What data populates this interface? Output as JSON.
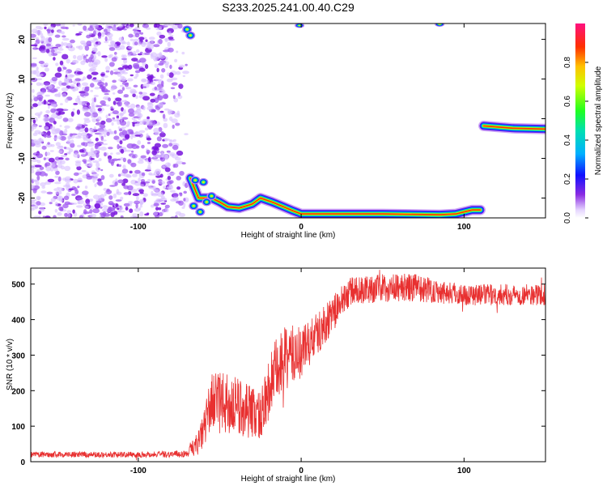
{
  "title": "S233.2025.241.00.40.C29",
  "chart_data": [
    {
      "type": "heatmap",
      "xlabel": "Height of straight line (km)",
      "ylabel": "Frequency (Hz)",
      "xlim": [
        -166,
        150
      ],
      "ylim": [
        -25,
        24
      ],
      "x_ticks": [
        -100,
        0,
        100
      ],
      "y_ticks": [
        -20,
        -10,
        0,
        10,
        20
      ],
      "colorbar": {
        "label": "Normalized spectral amplitude",
        "range": [
          0,
          1
        ],
        "ticks": [
          "0.0",
          "0.2",
          "0.4",
          "0.6",
          "0.8"
        ]
      },
      "features": [
        {
          "name": "noise",
          "x_range": [
            -166,
            -70
          ],
          "y_range": [
            -25,
            24
          ],
          "level": 0.15
        },
        {
          "name": "lower-trace",
          "points": [
            [
              -68,
              -15
            ],
            [
              -63,
              -20
            ],
            [
              -55,
              -20
            ],
            [
              -50,
              -21
            ],
            [
              -45,
              -22.2
            ],
            [
              -38,
              -22.5
            ],
            [
              -30,
              -21.5
            ],
            [
              -25,
              -20
            ],
            [
              -18,
              -21
            ],
            [
              -12,
              -22
            ],
            [
              -5,
              -23.2
            ],
            [
              0,
              -24
            ],
            [
              20,
              -24
            ],
            [
              50,
              -24
            ],
            [
              85,
              -24.2
            ],
            [
              95,
              -24
            ],
            [
              105,
              -23
            ],
            [
              110,
              -23
            ]
          ],
          "level": 0.9
        },
        {
          "name": "upper-right-trace",
          "points": [
            [
              112,
              -1.8
            ],
            [
              130,
              -2.4
            ],
            [
              150,
              -2.6
            ]
          ],
          "level": 0.9
        },
        {
          "name": "top-blips",
          "points": [
            [
              -1,
              23.5
            ],
            [
              85,
              23.8
            ]
          ],
          "level": 0.6
        }
      ]
    },
    {
      "type": "line",
      "xlabel": "Height of straight line (km)",
      "ylabel": "SNR (10 * v/v)",
      "xlim": [
        -166,
        150
      ],
      "ylim": [
        0,
        545
      ],
      "x_ticks": [
        -100,
        0,
        100
      ],
      "y_ticks": [
        0,
        100,
        200,
        300,
        400,
        500
      ],
      "color": "#e83030",
      "envelope": [
        {
          "x": -166,
          "mean": 20,
          "spread": 8
        },
        {
          "x": -100,
          "mean": 20,
          "spread": 8
        },
        {
          "x": -70,
          "mean": 22,
          "spread": 10
        },
        {
          "x": -62,
          "mean": 60,
          "spread": 40
        },
        {
          "x": -55,
          "mean": 170,
          "spread": 80
        },
        {
          "x": -45,
          "mean": 160,
          "spread": 90
        },
        {
          "x": -35,
          "mean": 150,
          "spread": 80
        },
        {
          "x": -25,
          "mean": 130,
          "spread": 70
        },
        {
          "x": -18,
          "mean": 230,
          "spread": 100
        },
        {
          "x": -10,
          "mean": 290,
          "spread": 90
        },
        {
          "x": 0,
          "mean": 310,
          "spread": 80
        },
        {
          "x": 10,
          "mean": 360,
          "spread": 60
        },
        {
          "x": 20,
          "mean": 420,
          "spread": 50
        },
        {
          "x": 30,
          "mean": 480,
          "spread": 40
        },
        {
          "x": 50,
          "mean": 490,
          "spread": 40
        },
        {
          "x": 70,
          "mean": 490,
          "spread": 40
        },
        {
          "x": 100,
          "mean": 470,
          "spread": 30
        },
        {
          "x": 150,
          "mean": 470,
          "spread": 30
        }
      ]
    }
  ]
}
